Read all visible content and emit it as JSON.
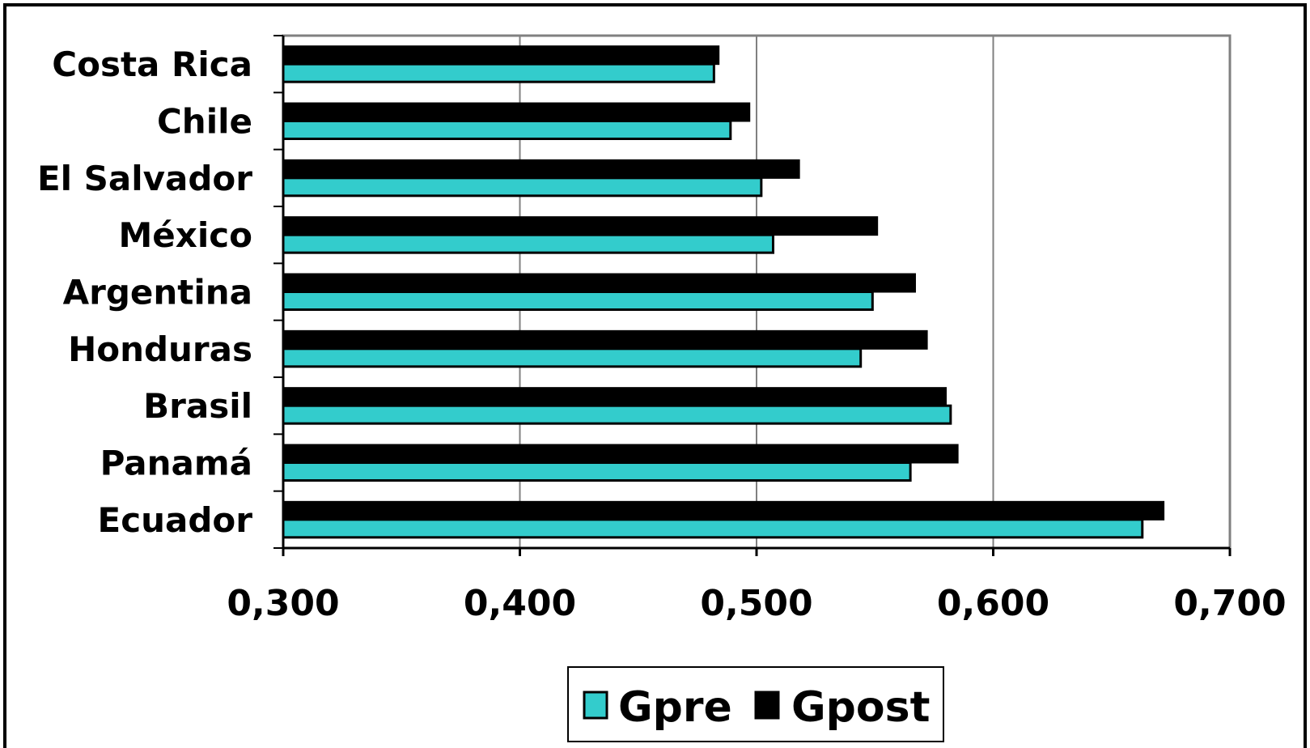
{
  "chart_data": {
    "type": "bar",
    "orientation": "horizontal",
    "title": "",
    "xlabel": "",
    "ylabel": "",
    "categories": [
      "Costa Rica",
      "Chile",
      "El Salvador",
      "México",
      "Argentina",
      "Honduras",
      "Brasil",
      "Panamá",
      "Ecuador"
    ],
    "series": [
      {
        "name": "Gpre",
        "color": "#33CCCC",
        "values": [
          0.482,
          0.489,
          0.502,
          0.507,
          0.549,
          0.544,
          0.582,
          0.565,
          0.663
        ]
      },
      {
        "name": "Gpost",
        "color": "#000000",
        "values": [
          0.484,
          0.497,
          0.518,
          0.551,
          0.567,
          0.572,
          0.58,
          0.585,
          0.672
        ]
      }
    ],
    "xlim": [
      0.3,
      0.7
    ],
    "xticks": [
      "0,300",
      "0,400",
      "0,500",
      "0,600",
      "0,700"
    ],
    "xtick_values": [
      0.3,
      0.4,
      0.5,
      0.6,
      0.7
    ],
    "grid": "vertical",
    "legend": "bottom"
  }
}
